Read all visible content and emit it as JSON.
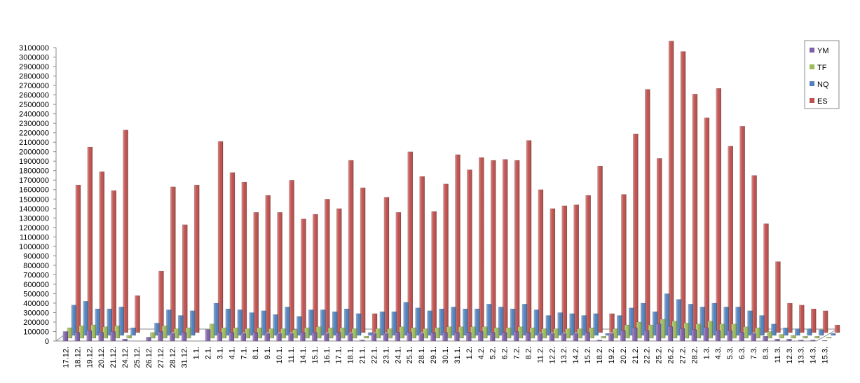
{
  "chart_data": {
    "type": "bar",
    "categories": [
      "17.12.",
      "18.12.",
      "19.12.",
      "20.12.",
      "21.12.",
      "24.12.",
      "25.12.",
      "26.12.",
      "27.12.",
      "28.12.",
      "31.12.",
      "1.1.",
      "2.1.",
      "3.1.",
      "4.1.",
      "7.1.",
      "8.1.",
      "9.1.",
      "10.1.",
      "11.1.",
      "14.1.",
      "15.1.",
      "16.1.",
      "17.1.",
      "18.1.",
      "21.1.",
      "22.1.",
      "23.1.",
      "24.1.",
      "25.1.",
      "28.1.",
      "29.1.",
      "30.1.",
      "31.1.",
      "1.2.",
      "4.2.",
      "5.2.",
      "6.2.",
      "7.2.",
      "8.2.",
      "11.2.",
      "12.2.",
      "13.2.",
      "14.2.",
      "15.2.",
      "18.2.",
      "19.2.",
      "20.2.",
      "21.2.",
      "22.2.",
      "25.2.",
      "26.2.",
      "27.2.",
      "28.2.",
      "1.3.",
      "4.3.",
      "5.3.",
      "6.3.",
      "7.3.",
      "8.3.",
      "11.3.",
      "12.3.",
      "13.3.",
      "14.3.",
      "15.3."
    ],
    "series": [
      {
        "name": "YM",
        "color": "#7f5fa8",
        "values": [
          100000,
          90000,
          110000,
          90000,
          100000,
          20000,
          0,
          40000,
          100000,
          80000,
          90000,
          0,
          120000,
          90000,
          90000,
          80000,
          90000,
          80000,
          80000,
          80000,
          90000,
          90000,
          80000,
          90000,
          80000,
          10000,
          80000,
          80000,
          90000,
          90000,
          80000,
          90000,
          90000,
          90000,
          90000,
          100000,
          90000,
          90000,
          100000,
          90000,
          80000,
          80000,
          80000,
          80000,
          90000,
          10000,
          80000,
          110000,
          140000,
          110000,
          180000,
          150000,
          130000,
          120000,
          140000,
          110000,
          110000,
          90000,
          80000,
          50000,
          20000,
          20000,
          10000,
          10000,
          5000
        ]
      },
      {
        "name": "TF",
        "color": "#9bbb59",
        "values": [
          110000,
          130000,
          140000,
          120000,
          130000,
          30000,
          0,
          60000,
          130000,
          100000,
          110000,
          0,
          150000,
          110000,
          110000,
          100000,
          110000,
          100000,
          100000,
          90000,
          110000,
          120000,
          110000,
          110000,
          100000,
          20000,
          100000,
          100000,
          120000,
          110000,
          100000,
          110000,
          120000,
          120000,
          120000,
          120000,
          110000,
          110000,
          120000,
          110000,
          100000,
          100000,
          100000,
          100000,
          110000,
          20000,
          100000,
          140000,
          170000,
          140000,
          200000,
          180000,
          160000,
          150000,
          180000,
          150000,
          150000,
          120000,
          110000,
          70000,
          40000,
          30000,
          20000,
          20000,
          10000
        ]
      },
      {
        "name": "NQ",
        "color": "#4f81bd",
        "values": [
          320000,
          360000,
          280000,
          280000,
          300000,
          80000,
          0,
          130000,
          270000,
          210000,
          260000,
          0,
          340000,
          280000,
          270000,
          240000,
          260000,
          220000,
          300000,
          200000,
          270000,
          270000,
          250000,
          280000,
          230000,
          30000,
          250000,
          250000,
          350000,
          290000,
          260000,
          280000,
          300000,
          280000,
          280000,
          330000,
          300000,
          280000,
          330000,
          270000,
          210000,
          240000,
          230000,
          210000,
          230000,
          20000,
          210000,
          290000,
          340000,
          250000,
          440000,
          380000,
          330000,
          300000,
          340000,
          300000,
          300000,
          260000,
          210000,
          120000,
          80000,
          70000,
          70000,
          60000,
          20000
        ]
      },
      {
        "name": "ES",
        "color": "#c0504d",
        "values": [
          1560000,
          1960000,
          1700000,
          1500000,
          2140000,
          390000,
          0,
          650000,
          1540000,
          1140000,
          1560000,
          0,
          2020000,
          1690000,
          1590000,
          1270000,
          1450000,
          1270000,
          1610000,
          1200000,
          1250000,
          1410000,
          1310000,
          1820000,
          1530000,
          200000,
          1430000,
          1270000,
          1910000,
          1650000,
          1280000,
          1570000,
          1880000,
          1720000,
          1850000,
          1820000,
          1830000,
          1820000,
          2030000,
          1510000,
          1310000,
          1340000,
          1350000,
          1450000,
          1760000,
          200000,
          1460000,
          2100000,
          2570000,
          1840000,
          3080000,
          2970000,
          2520000,
          2270000,
          2580000,
          1970000,
          2180000,
          1660000,
          1150000,
          750000,
          310000,
          290000,
          250000,
          230000,
          80000
        ]
      }
    ],
    "ylim": [
      0,
      3100000
    ],
    "yticks": [
      0,
      100000,
      200000,
      300000,
      400000,
      500000,
      600000,
      700000,
      800000,
      900000,
      1000000,
      1100000,
      1200000,
      1300000,
      1400000,
      1500000,
      1600000,
      1700000,
      1800000,
      1900000,
      2000000,
      2100000,
      2200000,
      2300000,
      2400000,
      2500000,
      2600000,
      2700000,
      2800000,
      2900000,
      3000000,
      3100000
    ],
    "grid": false,
    "legend": "right"
  }
}
